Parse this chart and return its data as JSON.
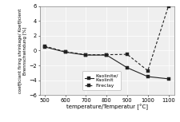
{
  "kaolinite_x": [
    500,
    600,
    700,
    800,
    900,
    1000,
    1100
  ],
  "kaolinite_y": [
    0.5,
    -0.2,
    -0.6,
    -0.6,
    -2.3,
    -3.5,
    -3.8
  ],
  "fireclay_x": [
    500,
    600,
    700,
    800,
    900,
    1000,
    1100
  ],
  "fireclay_y": [
    0.6,
    -0.15,
    -0.55,
    -0.55,
    -0.5,
    -2.7,
    6.0
  ],
  "xlabel": "temperature/Temperatur [°C]",
  "ylabel_line1": "coefƒiciant firing shrinkage/ Koefƒicient",
  "ylabel_line2": "Brennschwindung [%]",
  "legend_kaolinite": "Kaolinite/\nKaolinit",
  "legend_fireclay": "Fireclay",
  "xlim": [
    475,
    1130
  ],
  "ylim": [
    -6,
    6
  ],
  "yticks": [
    -6,
    -4,
    -2,
    0,
    2,
    4,
    6
  ],
  "xticks": [
    500,
    600,
    700,
    800,
    900,
    1000,
    1100
  ],
  "line_color": "#222222",
  "bg_color": "#efefef",
  "axis_fontsize": 5.0,
  "tick_fontsize": 4.8,
  "legend_fontsize": 4.3,
  "ylabel_fontsize": 4.0
}
